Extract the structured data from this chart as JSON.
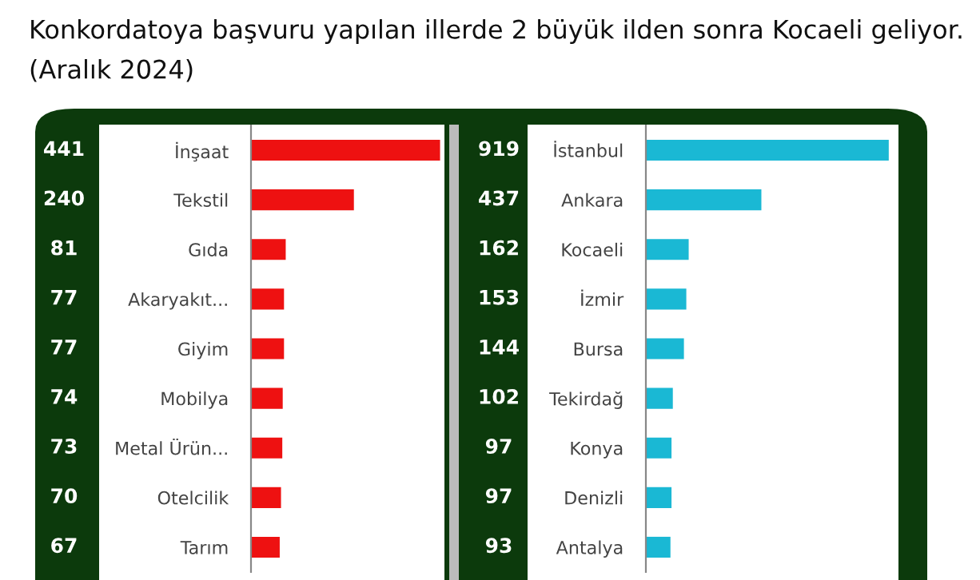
{
  "chart_data": [
    {
      "type": "bar",
      "orientation": "horizontal",
      "title": "Konkordatoya başvuru yapılan illerde 2 büyük ilden sonra Kocaeli geliyor.",
      "subtitle": "(Aralık 2024)",
      "categories": [
        "İnşaat",
        "Tekstil",
        "Gıda",
        "Akaryakıt...",
        "Giyim",
        "Mobilya",
        "Metal Ürün...",
        "Otelcilik",
        "Tarım"
      ],
      "values": [
        441,
        240,
        81,
        77,
        77,
        74,
        73,
        70,
        67
      ],
      "color": "#ee1111",
      "data_labels": true,
      "tick_labels": "y",
      "grid": false,
      "legend": false
    },
    {
      "type": "bar",
      "orientation": "horizontal",
      "categories": [
        "İstanbul",
        "Ankara",
        "Kocaeli",
        "İzmir",
        "Bursa",
        "Tekirdağ",
        "Konya",
        "Denizli",
        "Antalya"
      ],
      "values": [
        919,
        437,
        162,
        153,
        144,
        102,
        97,
        97,
        93
      ],
      "color": "#1ab8d4",
      "data_labels": true,
      "tick_labels": "y",
      "grid": false,
      "legend": false
    }
  ]
}
